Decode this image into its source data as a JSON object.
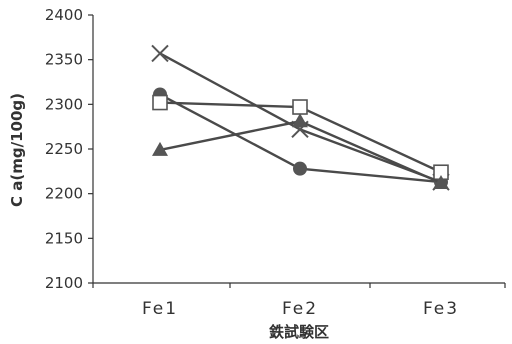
{
  "chart_data": {
    "type": "line",
    "categories": [
      "Fe1",
      "Fe2",
      "Fe3"
    ],
    "xlabel": "鉄試験区",
    "ylabel": "C a(mg/100g)",
    "ylim": [
      2100,
      2400
    ],
    "yticks": [
      2100,
      2150,
      2200,
      2250,
      2300,
      2350,
      2400
    ],
    "grid": false,
    "series": [
      {
        "marker": "cross",
        "values": [
          2357,
          2272,
          2213
        ]
      },
      {
        "marker": "circle",
        "values": [
          2311,
          2228,
          2213
        ]
      },
      {
        "marker": "square",
        "values": [
          2302,
          2297,
          2224
        ]
      },
      {
        "marker": "triangle",
        "values": [
          2249,
          2281,
          2212
        ]
      }
    ],
    "colors": {
      "line": "#4a4a4a",
      "marker": "#555555",
      "axis": "#333333"
    }
  }
}
